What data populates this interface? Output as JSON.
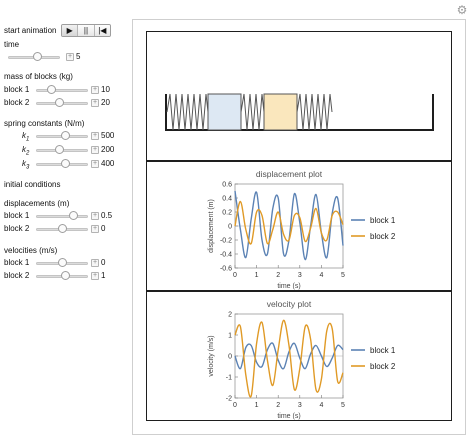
{
  "controls": {
    "start_animation": "start animation",
    "buttons": [
      {
        "icon": "play-icon",
        "glyph": "▶"
      },
      {
        "icon": "pause-icon",
        "glyph": "||"
      },
      {
        "icon": "reset-icon",
        "glyph": "|◀"
      }
    ],
    "time": {
      "label": "time",
      "value": "5",
      "fraction": 0.55
    },
    "mass_heading": "mass of blocks (kg)",
    "mass": [
      {
        "label": "block 1",
        "value": "10",
        "fraction": 0.28
      },
      {
        "label": "block 2",
        "value": "20",
        "fraction": 0.45
      }
    ],
    "spring_heading": "spring constants (N/m)",
    "springs": [
      {
        "label_main": "k",
        "label_sub": "1",
        "value": "500",
        "fraction": 0.55
      },
      {
        "label_main": "k",
        "label_sub": "2",
        "value": "200",
        "fraction": 0.45
      },
      {
        "label_main": "k",
        "label_sub": "3",
        "value": "400",
        "fraction": 0.55
      }
    ],
    "initial_conditions": "initial conditions",
    "disp_heading": "displacements (m)",
    "displacements": [
      {
        "label": "block 1",
        "value": "0.5",
        "fraction": 0.72
      },
      {
        "label": "block 2",
        "value": "0",
        "fraction": 0.5
      }
    ],
    "vel_heading": "velocities (m/s)",
    "velocities": [
      {
        "label": "block 1",
        "value": "0",
        "fraction": 0.5
      },
      {
        "label": "block 2",
        "value": "1",
        "fraction": 0.55
      }
    ]
  },
  "colors": {
    "block1": "#5b82b4",
    "block2": "#e09a26",
    "block1_fill": "#dde8f3",
    "block2_fill": "#fae7bd"
  },
  "chart_data": [
    {
      "type": "line",
      "title": "displacement plot",
      "xlabel": "time (s)",
      "ylabel": "displacement (m)",
      "xlim": [
        0,
        5
      ],
      "ylim": [
        -0.6,
        0.6
      ],
      "xticks": [
        "0",
        "1",
        "2",
        "3",
        "4",
        "5"
      ],
      "yticks": [
        "0.6",
        "0.4",
        "0.2",
        "0",
        "-0.2",
        "-0.4",
        "-0.6"
      ],
      "grid": false,
      "legend": "right",
      "series": [
        {
          "name": "block 1",
          "x": [
            0,
            0.25,
            0.5,
            0.75,
            1.0,
            1.25,
            1.5,
            1.75,
            2.0,
            2.25,
            2.5,
            2.75,
            3.0,
            3.25,
            3.5,
            3.75,
            4.0,
            4.25,
            4.5,
            4.75,
            5.0
          ],
          "y": [
            0.5,
            -0.05,
            -0.45,
            0.1,
            0.48,
            -0.2,
            -0.4,
            0.25,
            0.4,
            -0.4,
            -0.2,
            0.46,
            0.05,
            -0.48,
            0.0,
            0.45,
            -0.1,
            -0.45,
            0.18,
            0.4,
            -0.28
          ]
        },
        {
          "name": "block 2",
          "x": [
            0,
            0.25,
            0.5,
            0.75,
            1.0,
            1.25,
            1.5,
            1.75,
            2.0,
            2.25,
            2.5,
            2.75,
            3.0,
            3.25,
            3.5,
            3.75,
            4.0,
            4.25,
            4.5,
            4.75,
            5.0
          ],
          "y": [
            0.0,
            0.35,
            -0.05,
            -0.25,
            0.2,
            0.15,
            -0.25,
            -0.05,
            0.2,
            -0.12,
            -0.2,
            0.15,
            0.12,
            -0.22,
            -0.03,
            0.25,
            -0.1,
            -0.2,
            0.15,
            0.2,
            0.02
          ]
        }
      ]
    },
    {
      "type": "line",
      "title": "velocity plot",
      "xlabel": "time (s)",
      "ylabel": "velocity (m/s)",
      "xlim": [
        0,
        5
      ],
      "ylim": [
        -2,
        2
      ],
      "xticks": [
        "0",
        "1",
        "2",
        "3",
        "4",
        "5"
      ],
      "yticks": [
        "2",
        "1",
        "0",
        "-1",
        "-2"
      ],
      "grid": false,
      "legend": "right",
      "series": [
        {
          "name": "block 1",
          "x": [
            0,
            0.25,
            0.5,
            0.75,
            1.0,
            1.25,
            1.5,
            1.75,
            2.0,
            2.25,
            2.5,
            2.75,
            3.0,
            3.25,
            3.5,
            3.75,
            4.0,
            4.25,
            4.5,
            4.75,
            5.0
          ],
          "y": [
            0.0,
            -0.6,
            0.4,
            0.5,
            -0.3,
            -0.5,
            0.3,
            0.6,
            -0.2,
            -0.6,
            0.2,
            0.6,
            -0.1,
            -0.6,
            0.1,
            0.5,
            0.0,
            -0.5,
            -0.1,
            0.5,
            0.3
          ]
        },
        {
          "name": "block 2",
          "x": [
            0,
            0.25,
            0.5,
            0.75,
            1.0,
            1.25,
            1.5,
            1.75,
            2.0,
            2.25,
            2.5,
            2.75,
            3.0,
            3.25,
            3.5,
            3.75,
            4.0,
            4.25,
            4.5,
            4.75,
            5.0
          ],
          "y": [
            1.0,
            1.4,
            -0.9,
            -1.9,
            0.6,
            1.6,
            -0.2,
            -1.4,
            0.3,
            1.7,
            0.5,
            -1.6,
            -0.6,
            1.4,
            0.8,
            -1.6,
            -1.1,
            1.2,
            1.3,
            -1.2,
            -0.8
          ]
        }
      ]
    }
  ]
}
